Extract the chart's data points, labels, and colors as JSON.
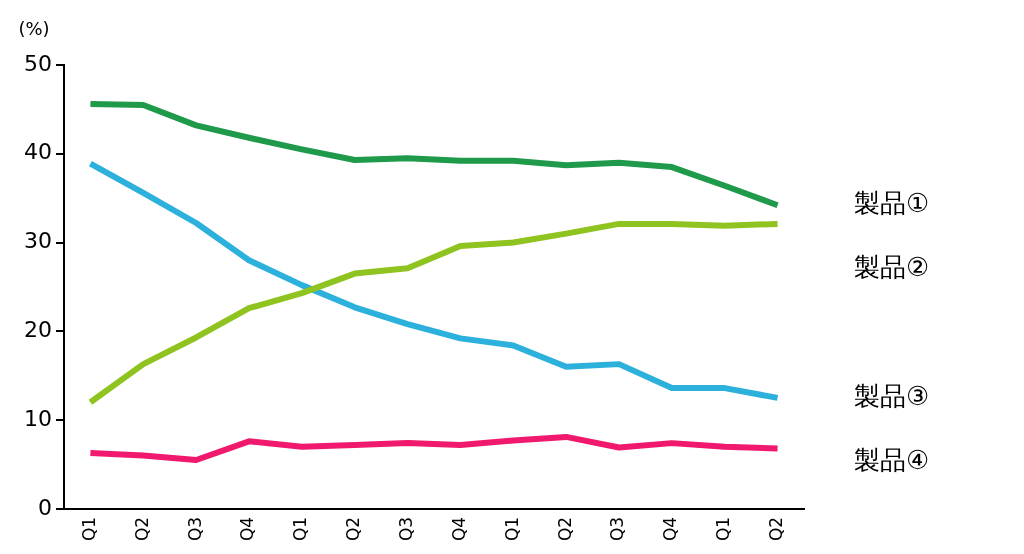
{
  "chart_data": {
    "type": "line",
    "ylabel": "(%)",
    "categories": [
      "Q1",
      "Q2",
      "Q3",
      "Q4",
      "Q1",
      "Q2",
      "Q3",
      "Q4",
      "Q1",
      "Q2",
      "Q3",
      "Q4",
      "Q1",
      "Q2"
    ],
    "ylim": [
      0,
      50
    ],
    "yticks": [
      0,
      10,
      20,
      30,
      40,
      50
    ],
    "grid": false,
    "legend": false,
    "marker": "none",
    "line_style": "solid",
    "series": [
      {
        "name": "製品①",
        "color": "#1e9a4a",
        "values": [
          45.6,
          45.5,
          43.2,
          41.8,
          40.5,
          39.3,
          39.5,
          39.2,
          39.2,
          38.7,
          39.0,
          38.5,
          36.4,
          34.2
        ]
      },
      {
        "name": "製品②",
        "color": "#8fc31f",
        "values": [
          12.0,
          16.3,
          19.3,
          22.6,
          24.3,
          26.5,
          27.1,
          29.6,
          30.0,
          31.0,
          32.1,
          32.1,
          31.9,
          32.1
        ]
      },
      {
        "name": "製品③",
        "color": "#2cb0dc",
        "values": [
          38.9,
          35.6,
          32.2,
          28.0,
          25.2,
          22.7,
          20.8,
          19.2,
          18.4,
          16.0,
          16.3,
          13.6,
          13.6,
          12.5
        ]
      },
      {
        "name": "製品④",
        "color": "#f0196e",
        "values": [
          6.3,
          6.0,
          5.5,
          7.6,
          7.0,
          7.2,
          7.4,
          7.2,
          7.7,
          8.1,
          6.9,
          7.4,
          7.0,
          6.8
        ]
      }
    ]
  }
}
